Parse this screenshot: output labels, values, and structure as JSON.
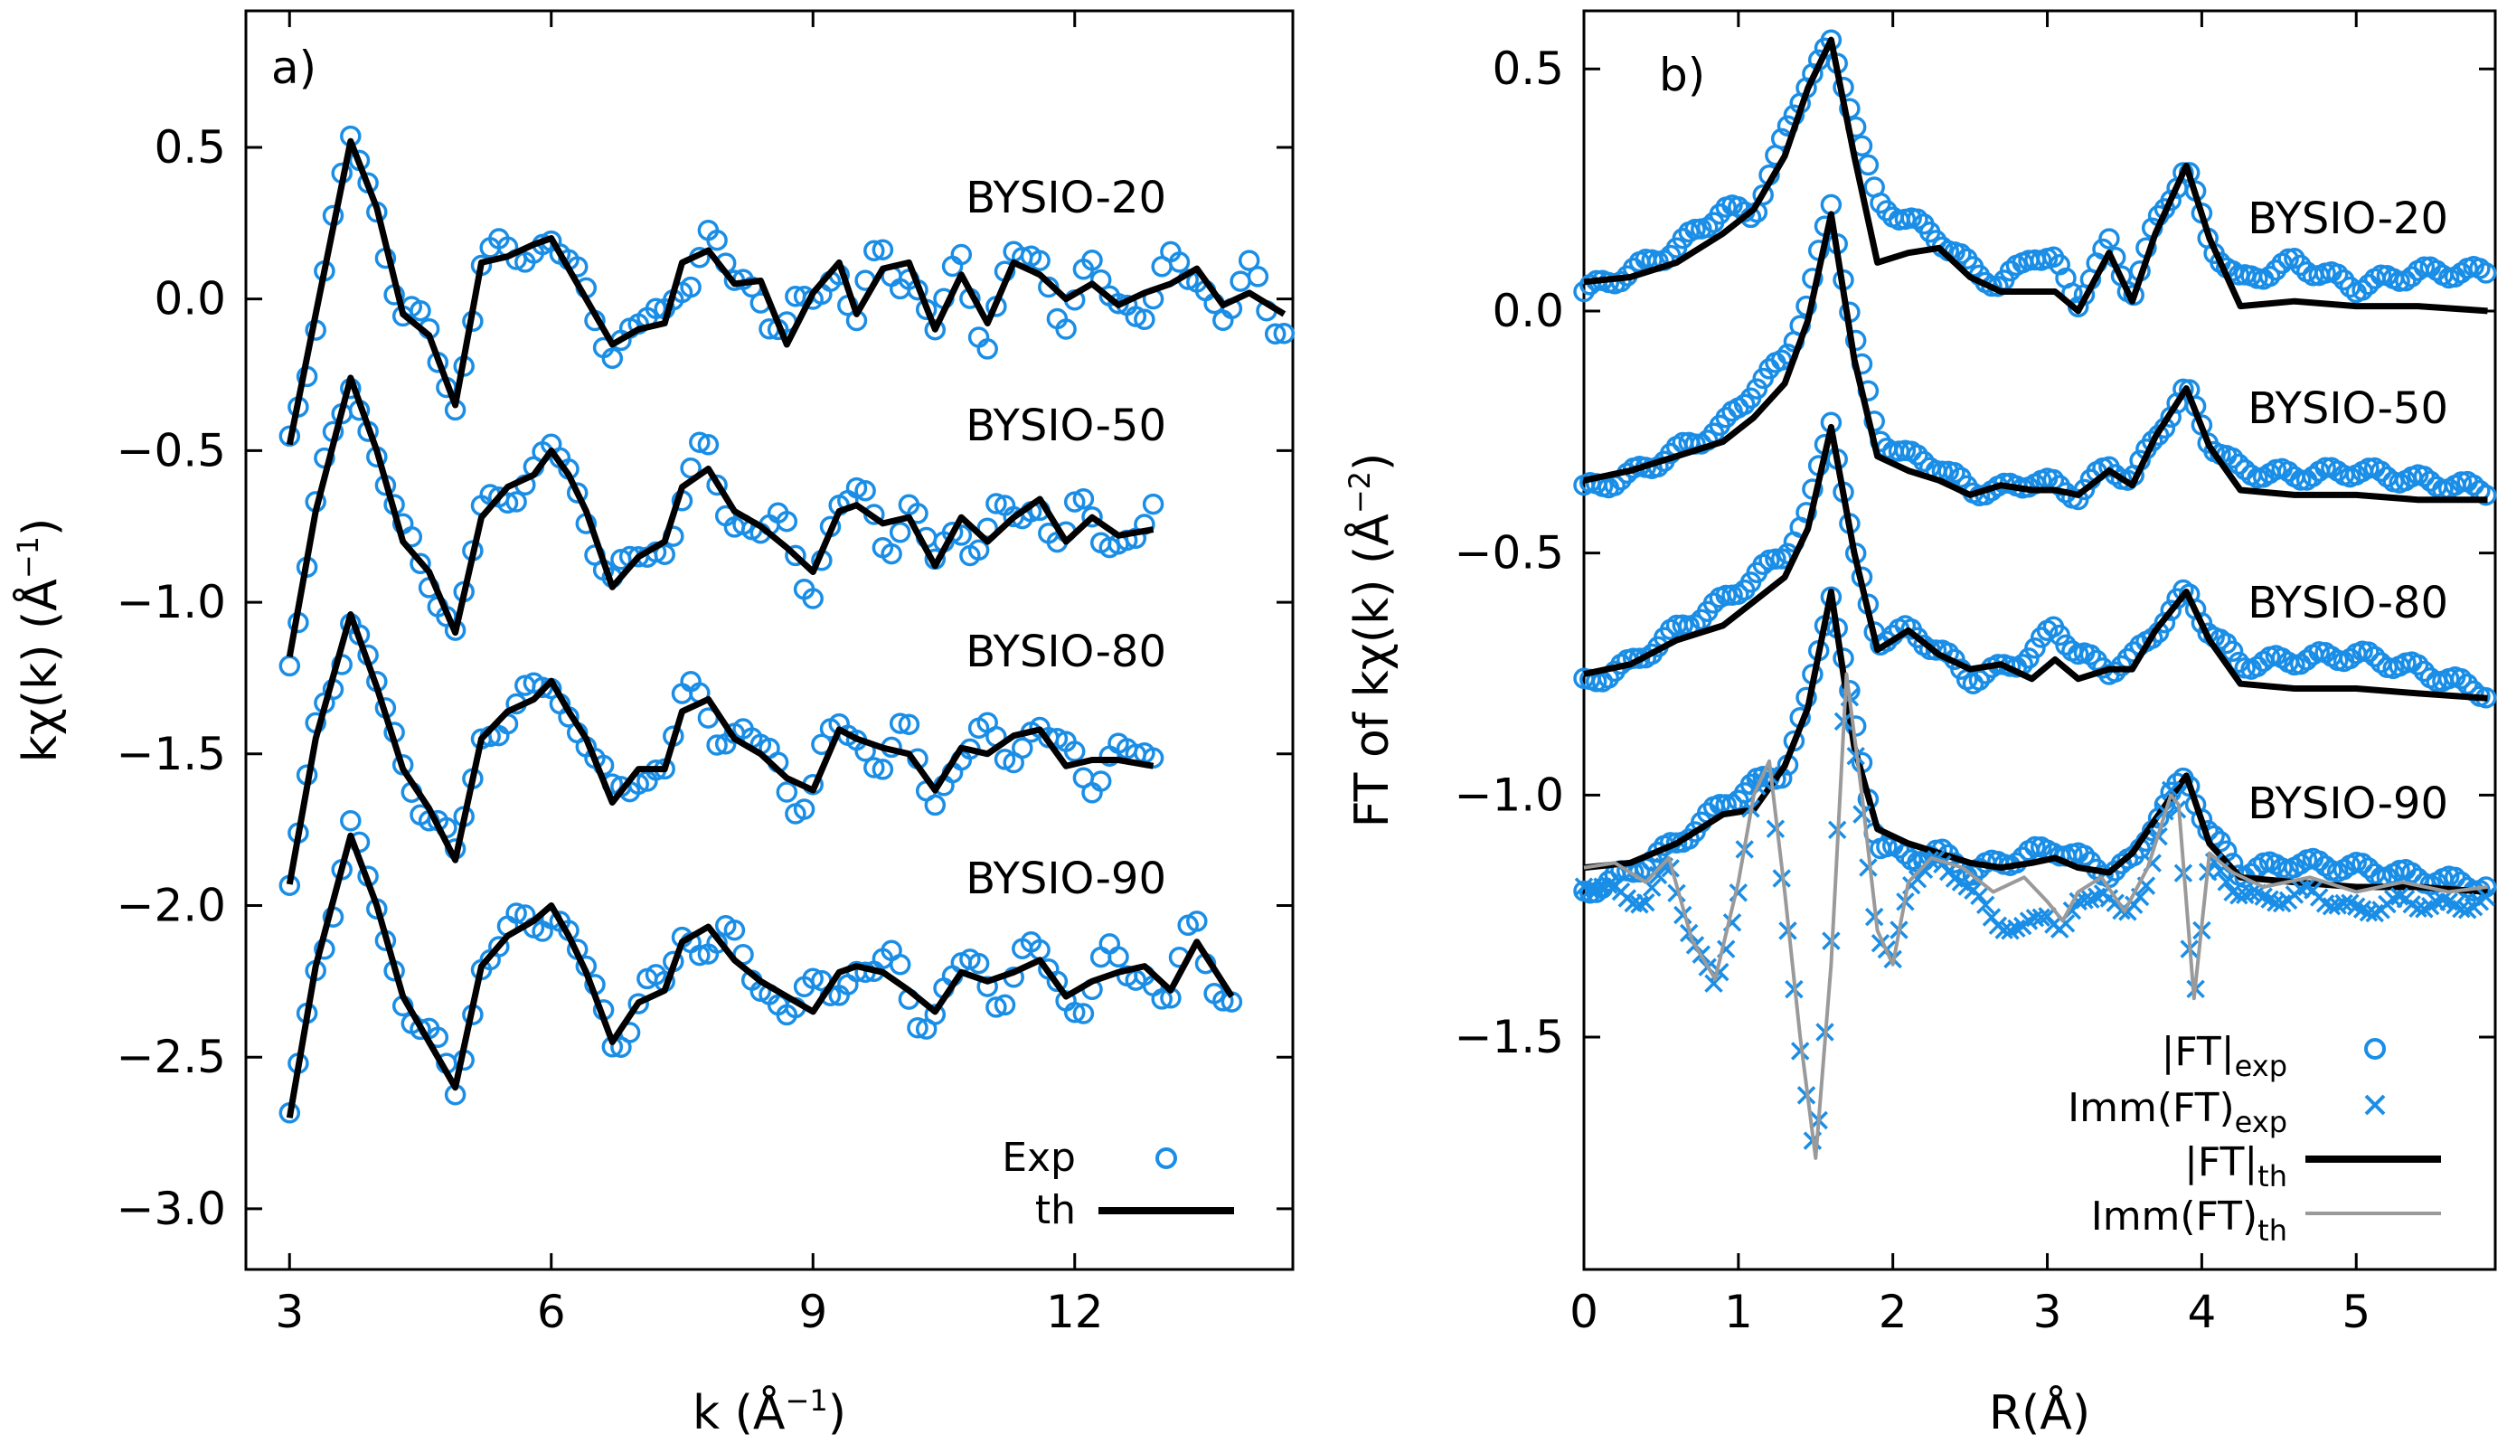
{
  "chart_data": [
    {
      "type": "line",
      "panel_label": "a)",
      "xlabel_main": "k (Å",
      "xlabel_sup": "−1",
      "xlabel_end": ")",
      "ylabel_main": "kχ(k) (Å",
      "ylabel_sup": "−1",
      "ylabel_end": ")",
      "xlim": [
        2.5,
        14.5
      ],
      "ylim": [
        -3.2,
        0.95
      ],
      "xticks": [
        3,
        6,
        9,
        12
      ],
      "xtick_labels": [
        "3",
        "6",
        "9",
        "12"
      ],
      "yticks": [
        0.5,
        0.0,
        -0.5,
        -1.0,
        -1.5,
        -2.0,
        -2.5,
        -3.0
      ],
      "ytick_labels": [
        "0.5",
        "0.0",
        "−0.5",
        "−1.0",
        "−1.5",
        "−2.0",
        "−2.5",
        "−3.0"
      ],
      "legend": {
        "position": "bottom-right",
        "exp_label": "Exp",
        "th_label": "th"
      },
      "series": [
        {
          "name": "BYSIO-20",
          "offset": 0.0,
          "k_end": 14.4,
          "x": [
            3.0,
            3.3,
            3.7,
            4.0,
            4.3,
            4.6,
            4.9,
            5.2,
            5.5,
            5.8,
            6.0,
            6.2,
            6.4,
            6.7,
            7.0,
            7.3,
            7.5,
            7.8,
            8.1,
            8.4,
            8.7,
            9.0,
            9.3,
            9.5,
            9.8,
            10.1,
            10.4,
            10.7,
            11.0,
            11.3,
            11.6,
            11.9,
            12.2,
            12.5,
            12.8,
            13.1,
            13.4,
            13.7,
            14.0,
            14.4
          ],
          "y": [
            -0.48,
            -0.05,
            0.52,
            0.3,
            -0.05,
            -0.12,
            -0.35,
            0.12,
            0.14,
            0.18,
            0.2,
            0.1,
            0.0,
            -0.15,
            -0.1,
            -0.08,
            0.12,
            0.16,
            0.05,
            0.06,
            -0.15,
            0.02,
            0.12,
            -0.05,
            0.1,
            0.12,
            -0.1,
            0.08,
            -0.08,
            0.12,
            0.08,
            0.0,
            0.05,
            -0.02,
            0.02,
            0.05,
            0.1,
            -0.02,
            0.02,
            -0.05
          ]
        },
        {
          "name": "BYSIO-50",
          "offset": -0.78,
          "k_end": 12.9,
          "x": [
            3.0,
            3.3,
            3.7,
            4.0,
            4.3,
            4.6,
            4.9,
            5.2,
            5.5,
            5.8,
            6.0,
            6.2,
            6.4,
            6.7,
            7.0,
            7.3,
            7.5,
            7.8,
            8.1,
            8.4,
            8.7,
            9.0,
            9.3,
            9.5,
            9.8,
            10.1,
            10.4,
            10.7,
            11.0,
            11.3,
            11.6,
            11.9,
            12.2,
            12.5,
            12.9
          ],
          "y": [
            -1.18,
            -0.7,
            -0.26,
            -0.5,
            -0.8,
            -0.9,
            -1.1,
            -0.72,
            -0.62,
            -0.58,
            -0.5,
            -0.58,
            -0.7,
            -0.95,
            -0.85,
            -0.8,
            -0.62,
            -0.56,
            -0.7,
            -0.75,
            -0.82,
            -0.9,
            -0.7,
            -0.68,
            -0.74,
            -0.72,
            -0.88,
            -0.72,
            -0.8,
            -0.72,
            -0.66,
            -0.8,
            -0.72,
            -0.78,
            -0.76
          ]
        },
        {
          "name": "BYSIO-80",
          "offset": -1.53,
          "k_end": 12.9,
          "x": [
            3.0,
            3.3,
            3.7,
            4.0,
            4.3,
            4.6,
            4.9,
            5.2,
            5.5,
            5.8,
            6.0,
            6.2,
            6.4,
            6.7,
            7.0,
            7.3,
            7.5,
            7.8,
            8.1,
            8.4,
            8.7,
            9.0,
            9.3,
            9.5,
            9.8,
            10.1,
            10.4,
            10.7,
            11.0,
            11.3,
            11.6,
            11.9,
            12.2,
            12.5,
            12.9
          ],
          "y": [
            -1.93,
            -1.45,
            -1.04,
            -1.28,
            -1.55,
            -1.68,
            -1.85,
            -1.45,
            -1.36,
            -1.32,
            -1.26,
            -1.36,
            -1.45,
            -1.66,
            -1.55,
            -1.55,
            -1.36,
            -1.32,
            -1.45,
            -1.5,
            -1.58,
            -1.62,
            -1.42,
            -1.45,
            -1.48,
            -1.5,
            -1.62,
            -1.48,
            -1.5,
            -1.44,
            -1.42,
            -1.54,
            -1.52,
            -1.52,
            -1.54
          ]
        },
        {
          "name": "BYSIO-90",
          "offset": -2.25,
          "k_end": 13.8,
          "x": [
            3.0,
            3.3,
            3.7,
            4.0,
            4.3,
            4.6,
            4.9,
            5.2,
            5.5,
            5.8,
            6.0,
            6.2,
            6.4,
            6.7,
            7.0,
            7.3,
            7.5,
            7.8,
            8.1,
            8.4,
            8.7,
            9.0,
            9.3,
            9.5,
            9.8,
            10.1,
            10.4,
            10.7,
            11.0,
            11.3,
            11.6,
            11.9,
            12.2,
            12.5,
            12.8,
            13.1,
            13.4,
            13.8
          ],
          "y": [
            -2.7,
            -2.2,
            -1.77,
            -2.0,
            -2.3,
            -2.45,
            -2.6,
            -2.2,
            -2.1,
            -2.05,
            -2.0,
            -2.1,
            -2.22,
            -2.45,
            -2.32,
            -2.28,
            -2.12,
            -2.07,
            -2.18,
            -2.25,
            -2.3,
            -2.35,
            -2.22,
            -2.2,
            -2.22,
            -2.28,
            -2.35,
            -2.22,
            -2.25,
            -2.22,
            -2.18,
            -2.3,
            -2.25,
            -2.22,
            -2.2,
            -2.28,
            -2.12,
            -2.3
          ]
        }
      ]
    },
    {
      "type": "line",
      "panel_label": "b)",
      "xlabel": "R(Å)",
      "ylabel_main": "FT of kχ(k) (Å",
      "ylabel_sup": "−2",
      "ylabel_end": ")",
      "xlim": [
        0,
        5.9
      ],
      "ylim": [
        -1.98,
        0.62
      ],
      "xticks": [
        0,
        1,
        2,
        3,
        4,
        5
      ],
      "xtick_labels": [
        "0",
        "1",
        "2",
        "3",
        "4",
        "5"
      ],
      "yticks": [
        0.5,
        0.0,
        -0.5,
        -1.0,
        -1.5
      ],
      "ytick_labels": [
        "0.5",
        "0.0",
        "−0.5",
        "−1.0",
        "−1.5"
      ],
      "legend": {
        "position": "bottom-right",
        "items": [
          {
            "label_main": "|FT|",
            "label_sub": "exp",
            "style": "circle"
          },
          {
            "label_main": "Imm(FT)",
            "label_sub": "exp",
            "style": "cross"
          },
          {
            "label_main": "|FT|",
            "label_sub": "th",
            "style": "black-line"
          },
          {
            "label_main": "Imm(FT)",
            "label_sub": "th",
            "style": "gray-line"
          }
        ]
      },
      "series": [
        {
          "name": "BYSIO-20",
          "x": [
            0.0,
            0.3,
            0.6,
            0.9,
            1.1,
            1.3,
            1.45,
            1.6,
            1.75,
            1.9,
            2.1,
            2.3,
            2.5,
            2.7,
            2.9,
            3.05,
            3.2,
            3.4,
            3.55,
            3.7,
            3.9,
            4.05,
            4.25,
            4.6,
            5.0,
            5.4,
            5.85
          ],
          "th": [
            0.06,
            0.07,
            0.1,
            0.16,
            0.21,
            0.32,
            0.46,
            0.56,
            0.32,
            0.1,
            0.12,
            0.13,
            0.07,
            0.04,
            0.04,
            0.04,
            0.0,
            0.12,
            0.02,
            0.16,
            0.3,
            0.15,
            0.01,
            0.02,
            0.01,
            0.01,
            0.0
          ],
          "exp": [
            0.04,
            0.08,
            0.13,
            0.21,
            0.2,
            0.36,
            0.48,
            0.55,
            0.4,
            0.22,
            0.19,
            0.15,
            0.09,
            0.05,
            0.12,
            0.1,
            0.02,
            0.14,
            0.03,
            0.18,
            0.3,
            0.14,
            0.06,
            0.1,
            0.05,
            0.08,
            0.08
          ]
        },
        {
          "name": "BYSIO-50",
          "x": [
            0.0,
            0.3,
            0.6,
            0.9,
            1.1,
            1.3,
            1.45,
            1.6,
            1.75,
            1.9,
            2.1,
            2.3,
            2.5,
            2.7,
            2.9,
            3.05,
            3.2,
            3.4,
            3.55,
            3.7,
            3.9,
            4.05,
            4.25,
            4.6,
            5.0,
            5.4,
            5.85
          ],
          "th": [
            -0.35,
            -0.33,
            -0.3,
            -0.27,
            -0.22,
            -0.15,
            -0.02,
            0.2,
            -0.1,
            -0.3,
            -0.33,
            -0.35,
            -0.38,
            -0.36,
            -0.37,
            -0.37,
            -0.38,
            -0.33,
            -0.36,
            -0.26,
            -0.16,
            -0.28,
            -0.37,
            -0.38,
            -0.38,
            -0.39,
            -0.39
          ],
          "exp": [
            -0.37,
            -0.34,
            -0.29,
            -0.24,
            -0.16,
            -0.1,
            0.02,
            0.22,
            -0.05,
            -0.26,
            -0.3,
            -0.32,
            -0.37,
            -0.37,
            -0.35,
            -0.36,
            -0.38,
            -0.32,
            -0.35,
            -0.26,
            -0.16,
            -0.27,
            -0.33,
            -0.34,
            -0.33,
            -0.35,
            -0.37
          ]
        },
        {
          "name": "BYSIO-80",
          "x": [
            0.0,
            0.3,
            0.6,
            0.9,
            1.1,
            1.3,
            1.45,
            1.6,
            1.75,
            1.9,
            2.1,
            2.3,
            2.5,
            2.7,
            2.9,
            3.05,
            3.2,
            3.4,
            3.55,
            3.7,
            3.9,
            4.05,
            4.25,
            4.6,
            5.0,
            5.4,
            5.85
          ],
          "th": [
            -0.75,
            -0.73,
            -0.68,
            -0.65,
            -0.6,
            -0.55,
            -0.45,
            -0.24,
            -0.5,
            -0.7,
            -0.66,
            -0.71,
            -0.74,
            -0.73,
            -0.76,
            -0.72,
            -0.76,
            -0.74,
            -0.74,
            -0.66,
            -0.58,
            -0.68,
            -0.77,
            -0.78,
            -0.78,
            -0.79,
            -0.8
          ],
          "exp": [
            -0.77,
            -0.73,
            -0.66,
            -0.6,
            -0.55,
            -0.5,
            -0.42,
            -0.22,
            -0.5,
            -0.68,
            -0.66,
            -0.7,
            -0.76,
            -0.74,
            -0.71,
            -0.65,
            -0.71,
            -0.74,
            -0.72,
            -0.66,
            -0.58,
            -0.66,
            -0.73,
            -0.72,
            -0.71,
            -0.74,
            -0.79
          ]
        },
        {
          "name": "BYSIO-90",
          "x": [
            0.0,
            0.3,
            0.6,
            0.9,
            1.1,
            1.3,
            1.45,
            1.6,
            1.75,
            1.9,
            2.1,
            2.3,
            2.5,
            2.7,
            2.9,
            3.05,
            3.2,
            3.4,
            3.55,
            3.7,
            3.9,
            4.05,
            4.25,
            4.6,
            5.0,
            5.4,
            5.85
          ],
          "th": [
            -1.15,
            -1.14,
            -1.1,
            -1.04,
            -1.03,
            -0.94,
            -0.82,
            -0.58,
            -0.9,
            -1.07,
            -1.1,
            -1.12,
            -1.14,
            -1.15,
            -1.14,
            -1.13,
            -1.15,
            -1.16,
            -1.12,
            -1.05,
            -0.96,
            -1.1,
            -1.17,
            -1.18,
            -1.19,
            -1.19,
            -1.2
          ],
          "exp": [
            -1.2,
            -1.16,
            -1.1,
            -1.02,
            -0.98,
            -0.95,
            -0.8,
            -0.58,
            -0.85,
            -1.1,
            -1.13,
            -1.12,
            -1.16,
            -1.14,
            -1.12,
            -1.11,
            -1.13,
            -1.16,
            -1.14,
            -1.05,
            -0.96,
            -1.08,
            -1.16,
            -1.14,
            -1.15,
            -1.17,
            -1.19
          ]
        },
        {
          "name": "Imm(FT) BYSIO-90",
          "x": [
            0.0,
            0.2,
            0.4,
            0.55,
            0.7,
            0.85,
            1.0,
            1.1,
            1.2,
            1.3,
            1.4,
            1.5,
            1.6,
            1.7,
            1.8,
            1.9,
            2.0,
            2.1,
            2.25,
            2.45,
            2.65,
            2.85,
            3.0,
            3.1,
            3.2,
            3.35,
            3.5,
            3.65,
            3.8,
            3.85,
            3.95,
            4.05,
            4.2,
            4.4,
            4.7,
            5.0,
            5.3,
            5.6,
            5.85
          ],
          "th": [
            -1.15,
            -1.14,
            -1.18,
            -1.13,
            -1.3,
            -1.38,
            -1.18,
            -1.0,
            -0.93,
            -1.2,
            -1.5,
            -1.75,
            -1.35,
            -0.75,
            -1.0,
            -1.28,
            -1.35,
            -1.18,
            -1.13,
            -1.15,
            -1.2,
            -1.17,
            -1.22,
            -1.26,
            -1.2,
            -1.17,
            -1.24,
            -1.15,
            -1.0,
            -1.02,
            -1.42,
            -1.12,
            -1.16,
            -1.19,
            -1.17,
            -1.2,
            -1.18,
            -1.2,
            -1.19
          ],
          "exp": [
            -1.18,
            -1.2,
            -1.22,
            -1.14,
            -1.3,
            -1.4,
            -1.2,
            -1.0,
            -0.95,
            -1.22,
            -1.54,
            -1.75,
            -1.3,
            -0.75,
            -1.03,
            -1.3,
            -1.35,
            -1.18,
            -1.14,
            -1.17,
            -1.26,
            -1.28,
            -1.24,
            -1.28,
            -1.23,
            -1.19,
            -1.26,
            -1.17,
            -1.0,
            -1.04,
            -1.42,
            -1.14,
            -1.19,
            -1.22,
            -1.2,
            -1.24,
            -1.22,
            -1.23,
            -1.22
          ]
        }
      ]
    }
  ]
}
